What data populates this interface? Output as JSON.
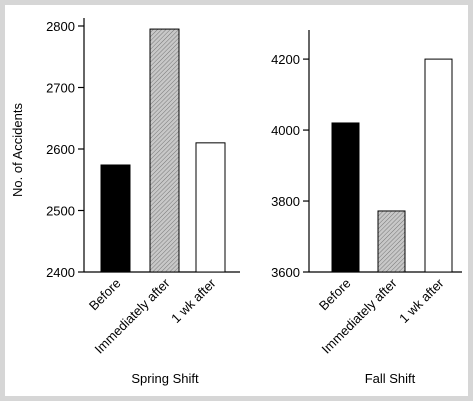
{
  "chart_data": [
    {
      "type": "bar",
      "xlabel": "Spring Shift",
      "ylabel": "No. of Accidents",
      "categories": [
        "Before",
        "Immediately after",
        "1 wk after"
      ],
      "values": [
        2574,
        2795,
        2610
      ],
      "colors": [
        "#000000",
        "#b4b4b4",
        "#ffffff"
      ],
      "ylim": [
        2400,
        2813
      ],
      "yticks": [
        2400,
        2500,
        2600,
        2700,
        2800
      ]
    },
    {
      "type": "bar",
      "xlabel": "Fall Shift",
      "categories": [
        "Before",
        "Immediately after",
        "1 wk after"
      ],
      "values": [
        4020,
        3772,
        4200
      ],
      "colors": [
        "#000000",
        "#b4b4b4",
        "#ffffff"
      ],
      "ylim": [
        3600,
        4282
      ],
      "yticks": [
        3600,
        3800,
        4000,
        4200
      ]
    }
  ]
}
